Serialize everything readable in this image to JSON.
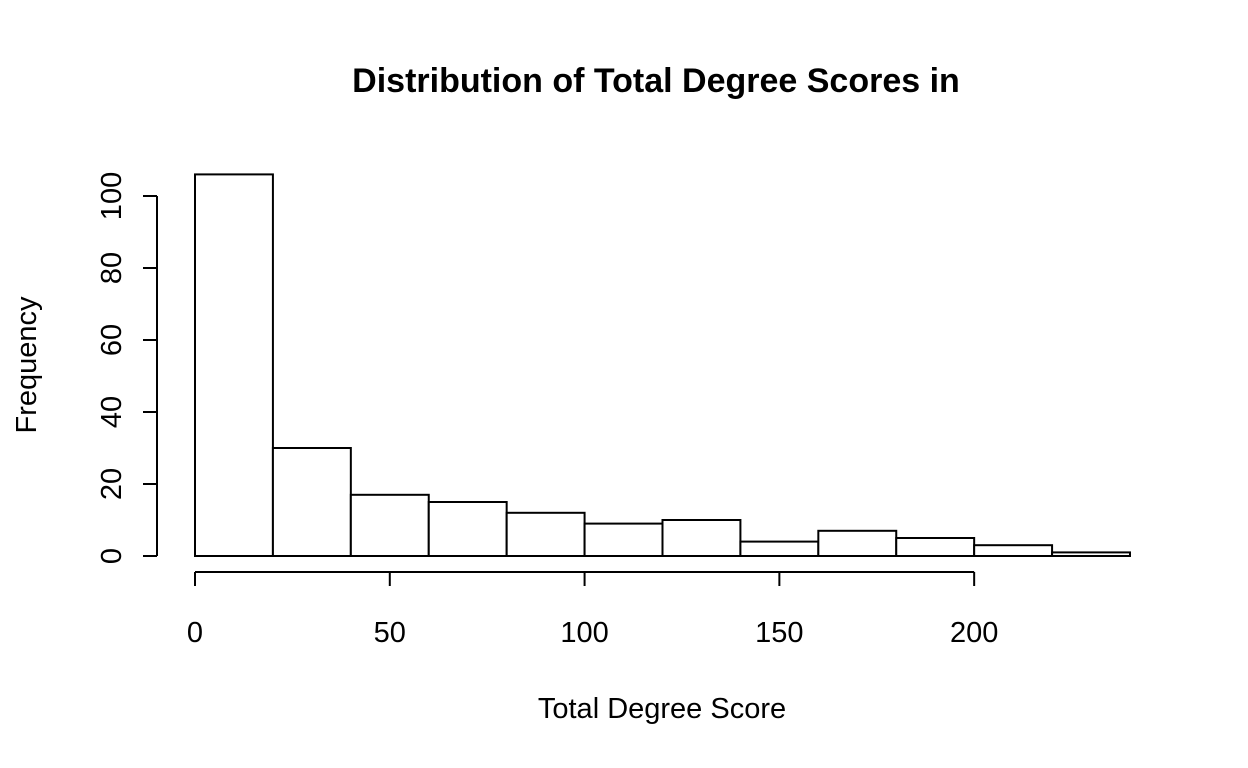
{
  "chart_data": {
    "type": "bar",
    "subtype": "histogram",
    "title": "Distribution of Total Degree Scores in",
    "xlabel": "Total Degree Score",
    "ylabel": "Frequency",
    "bins": [
      {
        "from": 0,
        "to": 20,
        "count": 106
      },
      {
        "from": 20,
        "to": 40,
        "count": 30
      },
      {
        "from": 40,
        "to": 60,
        "count": 17
      },
      {
        "from": 60,
        "to": 80,
        "count": 15
      },
      {
        "from": 80,
        "to": 100,
        "count": 12
      },
      {
        "from": 100,
        "to": 120,
        "count": 9
      },
      {
        "from": 120,
        "to": 140,
        "count": 10
      },
      {
        "from": 140,
        "to": 160,
        "count": 4
      },
      {
        "from": 160,
        "to": 180,
        "count": 7
      },
      {
        "from": 180,
        "to": 200,
        "count": 5
      },
      {
        "from": 200,
        "to": 220,
        "count": 3
      },
      {
        "from": 220,
        "to": 240,
        "count": 1
      }
    ],
    "xlim": [
      0,
      240
    ],
    "ylim": [
      0,
      106
    ],
    "x_ticks": [
      0,
      50,
      100,
      150,
      200
    ],
    "x_tick_labels": [
      "0",
      "50",
      "100",
      "150",
      "200"
    ],
    "y_ticks": [
      0,
      20,
      40,
      60,
      80,
      100
    ],
    "y_tick_labels": [
      "0",
      "20",
      "40",
      "60",
      "80",
      "100"
    ],
    "grid": false,
    "legend": "none",
    "bar_fill": "#ffffff",
    "bar_stroke": "#000000"
  }
}
